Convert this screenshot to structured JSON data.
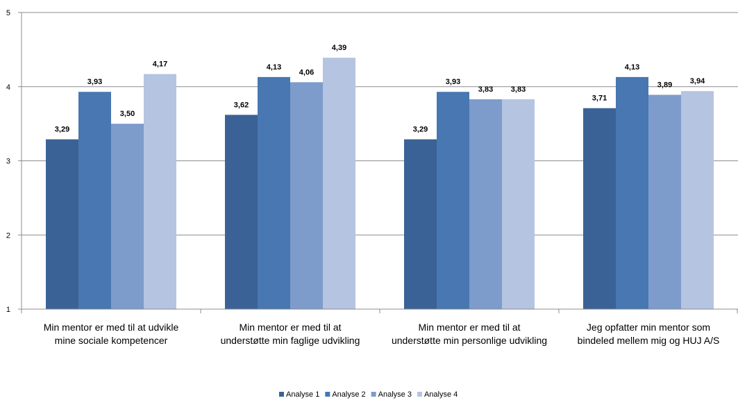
{
  "chart_data": {
    "type": "bar",
    "title": "",
    "xlabel": "",
    "ylabel": "",
    "ylim": [
      1,
      5
    ],
    "yticks": [
      "1",
      "2",
      "3",
      "4",
      "5"
    ],
    "grid": true,
    "legend_position": "bottom",
    "categories": [
      [
        "Min mentor er med til at udvikle",
        "mine sociale kompetencer"
      ],
      [
        "Min mentor er med til at",
        "understøtte min faglige udvikling"
      ],
      [
        "Min mentor er med til at",
        "understøtte min personlige udvikling"
      ],
      [
        "Jeg opfatter min mentor som",
        "bindeled mellem mig og HUJ A/S"
      ]
    ],
    "series": [
      {
        "name": "Analyse 1",
        "color": "#3b6296",
        "values": [
          3.29,
          3.62,
          3.29,
          3.71
        ],
        "labels": [
          "3,29",
          "3,62",
          "3,29",
          "3,71"
        ]
      },
      {
        "name": "Analyse 2",
        "color": "#4877b1",
        "values": [
          3.93,
          4.13,
          3.93,
          4.13
        ],
        "labels": [
          "3,93",
          "4,13",
          "3,93",
          "4,13"
        ]
      },
      {
        "name": "Analyse 3",
        "color": "#7d9ccb",
        "values": [
          3.5,
          4.06,
          3.83,
          3.89
        ],
        "labels": [
          "3,50",
          "4,06",
          "3,83",
          "3,89"
        ]
      },
      {
        "name": "Analyse 4",
        "color": "#b5c4e0",
        "values": [
          4.17,
          4.39,
          3.83,
          3.94
        ],
        "labels": [
          "4,17",
          "4,39",
          "3,83",
          "3,94"
        ]
      }
    ]
  }
}
